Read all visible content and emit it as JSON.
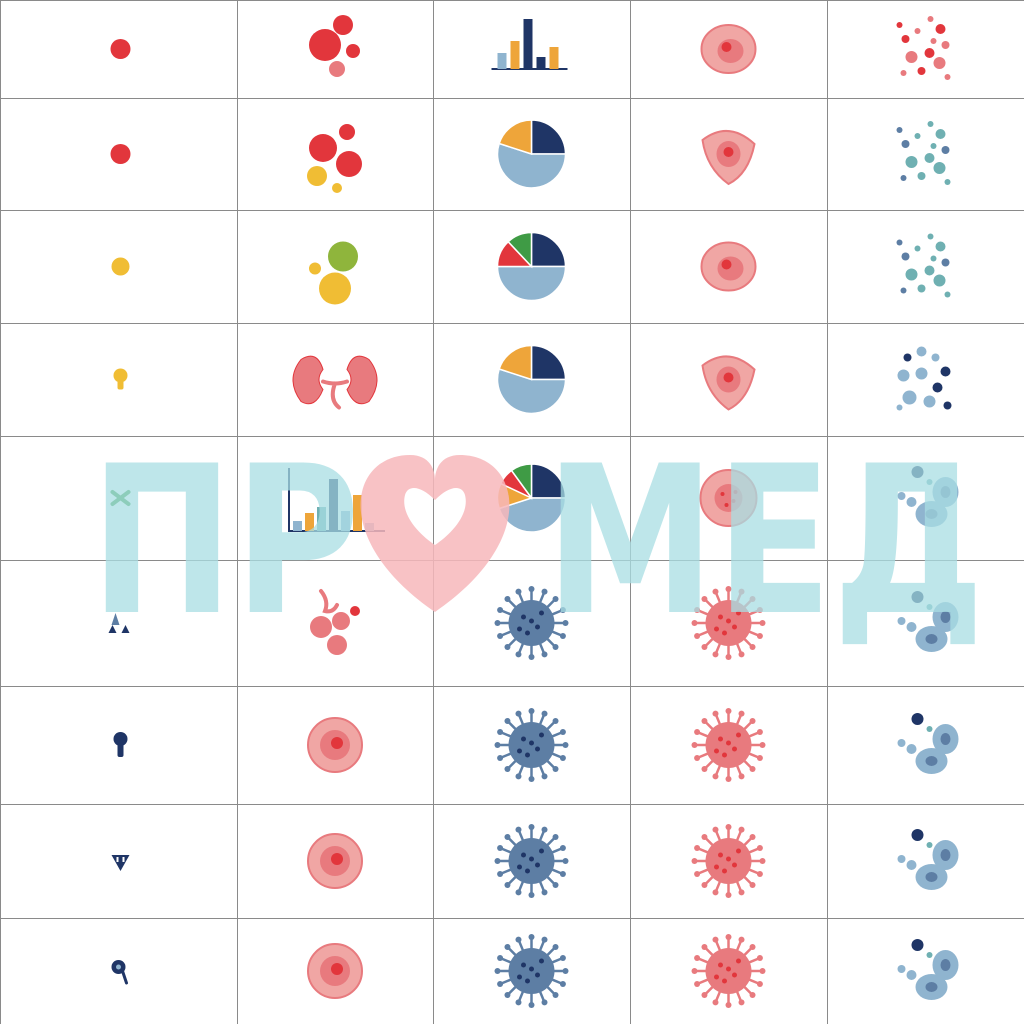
{
  "palette": {
    "red": "#e2363c",
    "pink": "#e87a7e",
    "salmon": "#f0a6a4",
    "orange": "#eea53a",
    "yellow": "#f0bd34",
    "green": "#8fb53c",
    "green_dark": "#3f9b45",
    "navy": "#1f3566",
    "steel": "#5d7ea4",
    "light_blue": "#8fb4cf",
    "teal": "#6fb0b2",
    "grid_line": "#8a8a8a",
    "watermark_blue": "#a8dde3",
    "watermark_heart": "#f7b7bb"
  },
  "watermark": {
    "text": "ПРОМЕД",
    "left": "ПР",
    "right": "МЕД",
    "heart_icon": "heart-icon"
  },
  "grid": {
    "rows": [
      [
        "dot-red",
        "bubbles-red",
        "bar-chart",
        "cell-red-round",
        "scatter-red"
      ],
      [
        "dot-red",
        "bubbles-red-yellow",
        "pie-chart-three",
        "cell-red-triangle",
        "scatter-teal"
      ],
      [
        "dot-yellow",
        "bubbles-green-yellow",
        "pie-chart-four",
        "cell-red-round",
        "scatter-teal"
      ],
      [
        "keyhole-yellow",
        "kidneys",
        "pie-chart-three",
        "cell-red-triangle",
        "scatter-blue"
      ],
      [
        "cross-green",
        "bar-chart-axes",
        "pie-chart-five",
        "cell-red-spotted",
        "cells-blue"
      ],
      [
        "droplets-blue",
        "bubbles-pink-stem",
        "virus-blue",
        "virus-red",
        "cells-blue"
      ],
      [
        "keyhole-navy",
        "cell-red-round-large",
        "virus-blue",
        "virus-red",
        "cells-blue"
      ],
      [
        "shield-navy",
        "cell-red-round-large",
        "virus-blue",
        "virus-red",
        "cells-blue"
      ],
      [
        "pin-navy",
        "cell-red-round-large",
        "virus-blue",
        "virus-red",
        "cells-blue"
      ]
    ]
  }
}
